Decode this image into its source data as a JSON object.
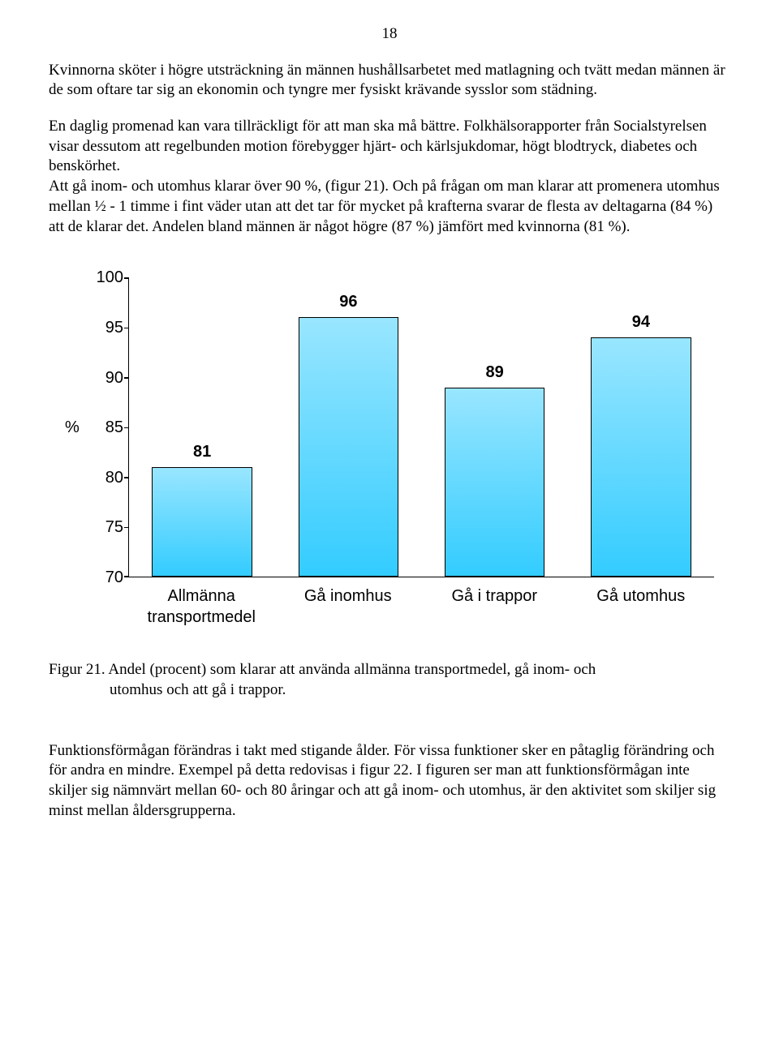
{
  "page_number": "18",
  "paragraph_1": "Kvinnorna sköter i högre utsträckning än männen hushållsarbetet med matlagning och tvätt medan männen är de som oftare tar sig an ekonomin och tyngre mer fysiskt krävande sysslor som städning.",
  "paragraph_2": "En daglig promenad kan vara tillräckligt för att man ska må bättre. Folkhälsorapporter från Socialstyrelsen visar dessutom att regelbunden motion förebygger hjärt- och kärlsjukdomar, högt blodtryck, diabetes och benskörhet.",
  "paragraph_3": "Att gå inom- och utomhus klarar över 90 %, (figur 21). Och på frågan om man klarar att promenera utomhus mellan ½ - 1 timme i fint väder utan att det tar för mycket på krafterna svarar de flesta av deltagarna (84 %) att de klarar det. Andelen bland männen är något högre (87 %) jämfört med kvinnorna (81 %).",
  "chart": {
    "type": "bar",
    "y_label": "%",
    "y_ticks": [
      "100",
      "95",
      "90",
      "85",
      "80",
      "75",
      "70"
    ],
    "y_min": 70,
    "y_max": 100,
    "bars": [
      {
        "label": "Allmänna transportmedel",
        "value": 81,
        "value_label": "81"
      },
      {
        "label": "Gå inomhus",
        "value": 96,
        "value_label": "96"
      },
      {
        "label": "Gå i trappor",
        "value": 89,
        "value_label": "89"
      },
      {
        "label": "Gå utomhus",
        "value": 94,
        "value_label": "94"
      }
    ],
    "bar_fill_top": "#99e6ff",
    "bar_fill_bottom": "#33ccff",
    "bar_border": "#000000",
    "axis_color": "#000000",
    "background": "#ffffff",
    "value_font_weight": "bold",
    "font_family": "Arial",
    "font_size": 20
  },
  "caption_line1": "Figur 21. Andel (procent) som klarar att använda allmänna transportmedel, gå inom- och",
  "caption_line2": "utomhus och att gå i trappor.",
  "paragraph_4": "Funktionsförmågan förändras i takt med stigande ålder. För vissa funktioner sker en påtaglig förändring och för andra en mindre. Exempel på detta redovisas i figur 22. I figuren ser man att funktionsförmågan inte skiljer sig nämnvärt mellan 60- och 80 åringar och att gå inom- och utomhus, är den aktivitet som skiljer sig minst mellan åldersgrupperna."
}
